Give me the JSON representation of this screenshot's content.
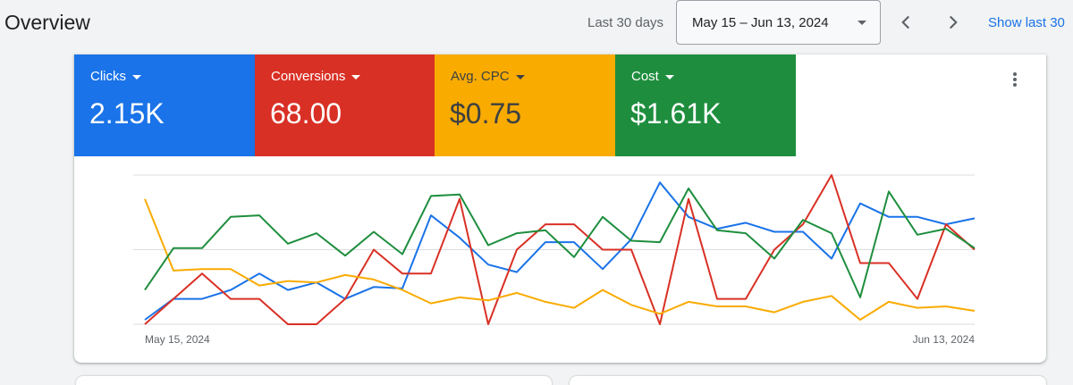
{
  "header": {
    "title": "Overview",
    "range_label": "Last 30 days",
    "date_range": "May 15 – Jun 13, 2024",
    "show_last_link": "Show last 30"
  },
  "scorecards": [
    {
      "label": "Clicks",
      "value": "2.15K",
      "color": "#1a73e8",
      "text_color": "#ffffff"
    },
    {
      "label": "Conversions",
      "value": "68.00",
      "color": "#d93025",
      "text_color": "#ffffff"
    },
    {
      "label": "Avg. CPC",
      "value": "$0.75",
      "color": "#f9ab00",
      "text_color": "#3c4043"
    },
    {
      "label": "Cost",
      "value": "$1.61K",
      "color": "#1e8e3e",
      "text_color": "#ffffff"
    }
  ],
  "chart_data": {
    "type": "line",
    "x_start_label": "May 15, 2024",
    "x_end_label": "Jun 13, 2024",
    "ylim": [
      0,
      100
    ],
    "grid": true,
    "series": [
      {
        "color": "#1a73e8",
        "values": [
          3,
          17,
          17,
          23,
          34,
          23,
          28,
          17,
          25,
          24,
          73,
          58,
          40,
          35,
          55,
          55,
          37,
          57,
          95,
          72,
          64,
          68,
          62,
          62,
          44,
          81,
          72,
          72,
          67,
          71
        ]
      },
      {
        "color": "#d93025",
        "values": [
          0,
          17,
          34,
          17,
          17,
          0,
          0,
          17,
          50,
          34,
          34,
          84,
          0,
          50,
          67,
          67,
          50,
          50,
          0,
          84,
          17,
          17,
          50,
          67,
          100,
          41,
          41,
          17,
          67,
          50
        ]
      },
      {
        "color": "#f9ab00",
        "values": [
          84,
          36,
          37,
          37,
          26,
          29,
          28,
          33,
          30,
          23,
          14,
          18,
          16,
          21,
          15,
          11,
          23,
          13,
          7,
          15,
          12,
          12,
          8,
          15,
          19,
          3,
          15,
          11,
          12,
          9
        ]
      },
      {
        "color": "#1e8e3e",
        "values": [
          23,
          51,
          51,
          72,
          73,
          54,
          61,
          46,
          62,
          47,
          86,
          87,
          53,
          61,
          63,
          45,
          72,
          56,
          55,
          91,
          63,
          61,
          44,
          70,
          61,
          18,
          89,
          60,
          64,
          51
        ]
      }
    ]
  }
}
